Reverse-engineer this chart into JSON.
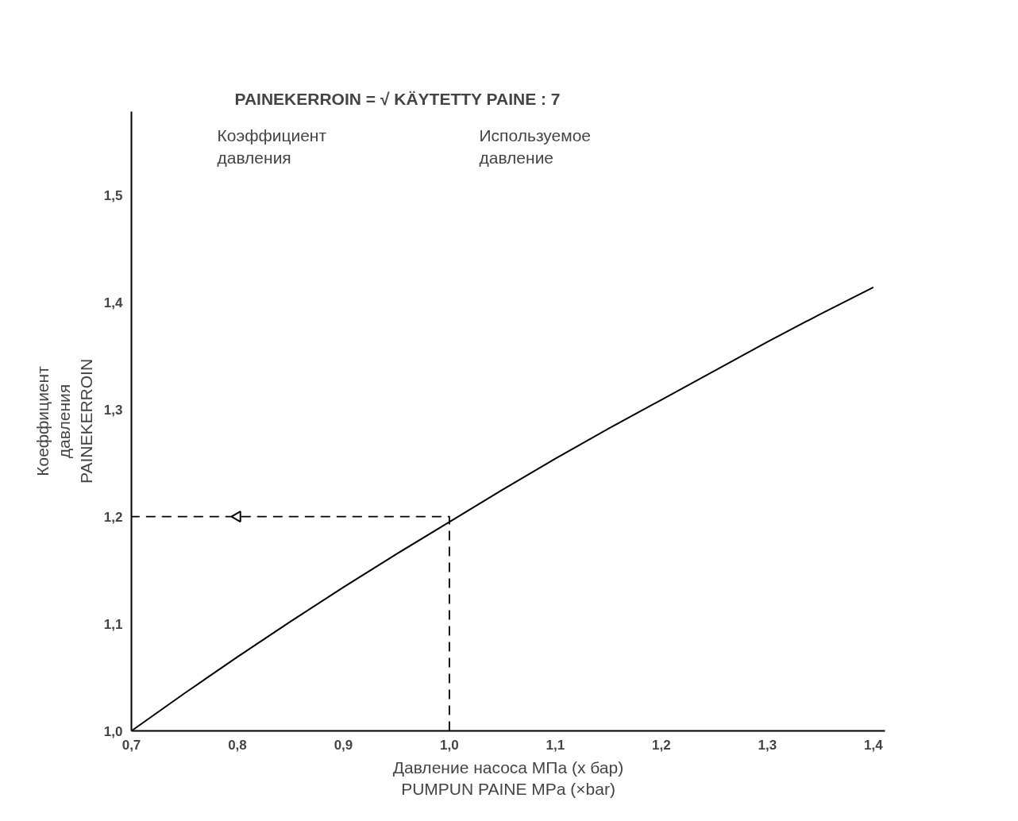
{
  "chart_data": {
    "type": "line",
    "xlabel": "Давление насоса МПа (x бар)\nPUMPUN PAINE MPa (×bar)",
    "ylabel": "Коеффициент\nдавления\nPAINEKERROIN",
    "annotations": [
      "PAINEKERROIN = √ KÄYTETTY PAINE : 7",
      "Коэффициент\nдавления",
      "Используемое\nдавление"
    ],
    "series": [
      {
        "color": "#000000",
        "line_style": "solid",
        "x": [
          0.7,
          0.75,
          0.8,
          0.85,
          0.9,
          0.95,
          1.0,
          1.05,
          1.1,
          1.15,
          1.2,
          1.25,
          1.3,
          1.35,
          1.4
        ],
        "values": [
          1.0,
          1.035,
          1.069,
          1.102,
          1.134,
          1.165,
          1.195,
          1.225,
          1.254,
          1.282,
          1.309,
          1.336,
          1.363,
          1.389,
          1.414
        ]
      },
      {
        "color": "#000000",
        "line_style": "dashed",
        "x": [
          1.0,
          1.0,
          0.8,
          0.7
        ],
        "values": [
          1.0,
          1.2,
          1.2,
          1.2
        ]
      }
    ],
    "xlim": [
      0.7,
      1.411
    ],
    "ylim": [
      1.0,
      1.578
    ],
    "xticks": [
      {
        "value": 0.7,
        "label": "0,7"
      },
      {
        "value": 0.8,
        "label": "0,8"
      },
      {
        "value": 0.9,
        "label": "0,9"
      },
      {
        "value": 1.0,
        "label": "1,0"
      },
      {
        "value": 1.1,
        "label": "1,1"
      },
      {
        "value": 1.2,
        "label": "1,2"
      },
      {
        "value": 1.3,
        "label": "1,3"
      },
      {
        "value": 1.4,
        "label": "1,4"
      }
    ],
    "yticks": [
      {
        "value": 1.0,
        "label": "1,0"
      },
      {
        "value": 1.1,
        "label": "1,1"
      },
      {
        "value": 1.2,
        "label": "1,2"
      },
      {
        "value": 1.3,
        "label": "1,3"
      },
      {
        "value": 1.4,
        "label": "1,4"
      },
      {
        "value": 1.5,
        "label": "1,5"
      }
    ],
    "grid": false,
    "marker": "none"
  }
}
